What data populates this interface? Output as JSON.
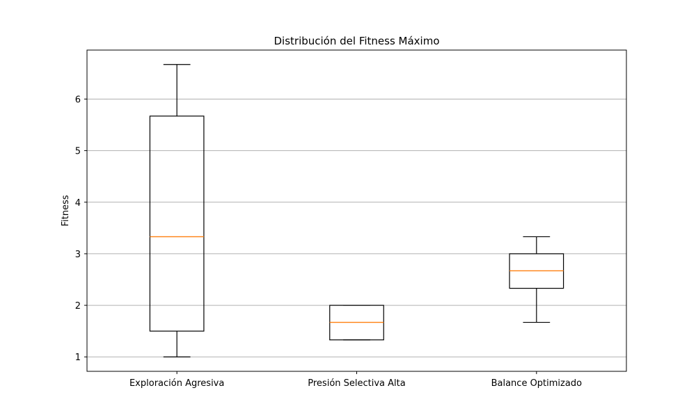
{
  "chart_data": {
    "type": "box",
    "title": "Distribución del Fitness Máximo",
    "xlabel": "",
    "ylabel": "Fitness",
    "categories": [
      "Exploración Agresiva",
      "Presión Selectiva Alta",
      "Balance Optimizado"
    ],
    "boxes": [
      {
        "whisker_low": 1.0,
        "q1": 1.5,
        "median": 3.33,
        "q3": 5.67,
        "whisker_high": 6.67
      },
      {
        "whisker_low": 1.33,
        "q1": 1.33,
        "median": 1.67,
        "q3": 2.0,
        "whisker_high": 2.0
      },
      {
        "whisker_low": 1.67,
        "q1": 2.33,
        "median": 2.67,
        "q3": 3.0,
        "whisker_high": 3.33
      }
    ],
    "yticks": [
      1,
      2,
      3,
      4,
      5,
      6
    ],
    "ylim": [
      0.72,
      6.95
    ],
    "grid": "y-axis horizontal lines",
    "colors": {
      "box": "#000000",
      "median": "#ff7f0e",
      "grid": "#b0b0b0"
    }
  }
}
